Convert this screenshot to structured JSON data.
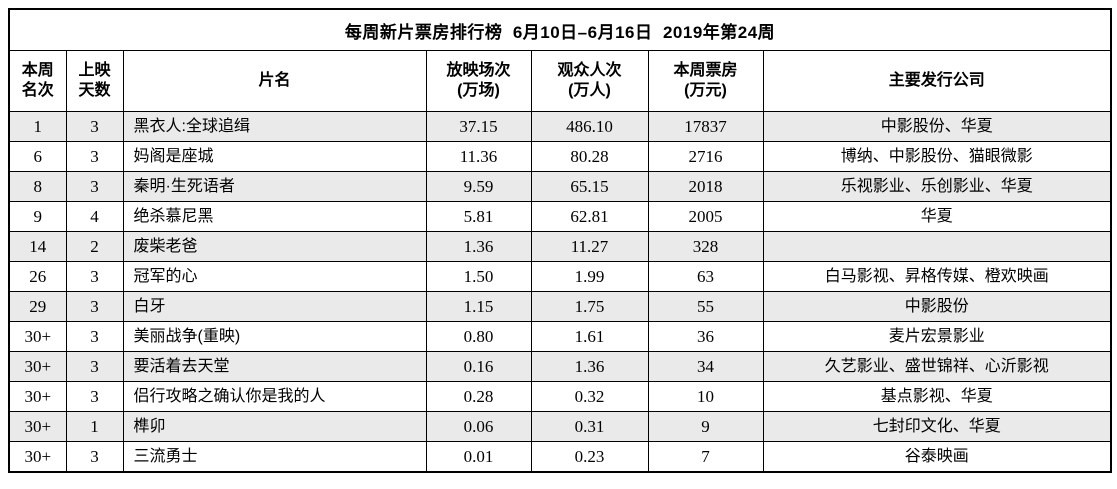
{
  "table": {
    "title": "每周新片票房排行榜  6月10日–6月16日  2019年第24周",
    "columns": [
      {
        "key": "rank",
        "label": "本周\n名次"
      },
      {
        "key": "days",
        "label": "上映\n天数"
      },
      {
        "key": "title",
        "label": "片名"
      },
      {
        "key": "screenings",
        "label": "放映场次\n(万场)"
      },
      {
        "key": "audience",
        "label": "观众人次\n(万人)"
      },
      {
        "key": "box_office",
        "label": "本周票房\n(万元)"
      },
      {
        "key": "distributors",
        "label": "主要发行公司"
      }
    ],
    "rows": [
      {
        "rank": "1",
        "days": "3",
        "title": "黑衣人:全球追缉",
        "screenings": "37.15",
        "audience": "486.10",
        "box_office": "17837",
        "distributors": "中影股份、华夏"
      },
      {
        "rank": "6",
        "days": "3",
        "title": "妈阁是座城",
        "screenings": "11.36",
        "audience": "80.28",
        "box_office": "2716",
        "distributors": "博纳、中影股份、猫眼微影"
      },
      {
        "rank": "8",
        "days": "3",
        "title": "秦明·生死语者",
        "screenings": "9.59",
        "audience": "65.15",
        "box_office": "2018",
        "distributors": "乐视影业、乐创影业、华夏"
      },
      {
        "rank": "9",
        "days": "4",
        "title": "绝杀慕尼黑",
        "screenings": "5.81",
        "audience": "62.81",
        "box_office": "2005",
        "distributors": "华夏"
      },
      {
        "rank": "14",
        "days": "2",
        "title": "废柴老爸",
        "screenings": "1.36",
        "audience": "11.27",
        "box_office": "328",
        "distributors": ""
      },
      {
        "rank": "26",
        "days": "3",
        "title": "冠军的心",
        "screenings": "1.50",
        "audience": "1.99",
        "box_office": "63",
        "distributors": "白马影视、昇格传媒、橙欢映画"
      },
      {
        "rank": "29",
        "days": "3",
        "title": "白牙",
        "screenings": "1.15",
        "audience": "1.75",
        "box_office": "55",
        "distributors": "中影股份"
      },
      {
        "rank": "30+",
        "days": "3",
        "title": "美丽战争(重映)",
        "screenings": "0.80",
        "audience": "1.61",
        "box_office": "36",
        "distributors": "麦片宏景影业"
      },
      {
        "rank": "30+",
        "days": "3",
        "title": "要活着去天堂",
        "screenings": "0.16",
        "audience": "1.36",
        "box_office": "34",
        "distributors": "久艺影业、盛世锦祥、心沂影视"
      },
      {
        "rank": "30+",
        "days": "3",
        "title": "侣行攻略之确认你是我的人",
        "screenings": "0.28",
        "audience": "0.32",
        "box_office": "10",
        "distributors": "基点影视、华夏"
      },
      {
        "rank": "30+",
        "days": "1",
        "title": "榫卯",
        "screenings": "0.06",
        "audience": "0.31",
        "box_office": "9",
        "distributors": "七封印文化、华夏"
      },
      {
        "rank": "30+",
        "days": "3",
        "title": "三流勇士",
        "screenings": "0.01",
        "audience": "0.23",
        "box_office": "7",
        "distributors": "谷泰映画"
      }
    ],
    "colors": {
      "shade_row_bg": "#eaeaea",
      "border": "#000000",
      "text": "#000000",
      "page_bg": "#ffffff"
    }
  }
}
